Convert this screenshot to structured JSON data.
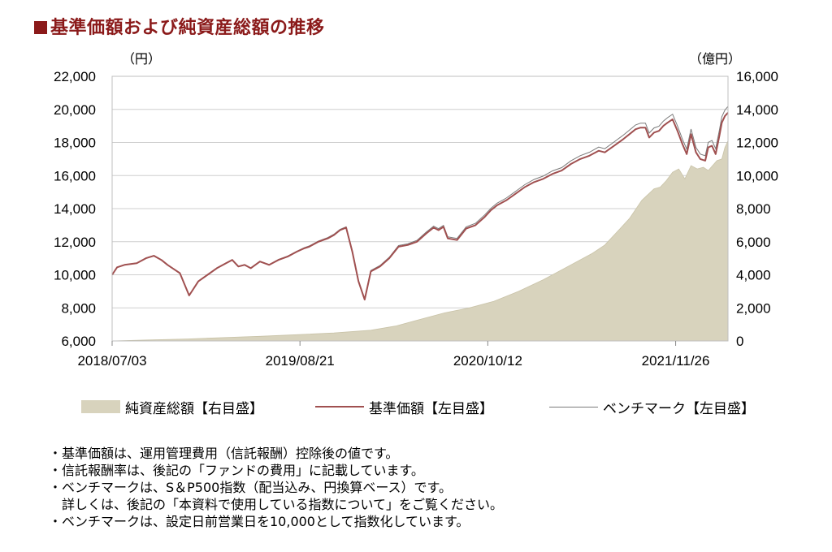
{
  "title": "基準価額および純資産総額の推移",
  "left_unit": "（円）",
  "right_unit": "（億円）",
  "colors": {
    "title": "#8b1a1a",
    "nav_line": "#a05050",
    "benchmark_line": "#7a7a7a",
    "assets_fill": "#d8d3bd",
    "grid": "#cfcfcf"
  },
  "legend": {
    "assets": "純資産総額【右目盛】",
    "nav": "基準価額【左目盛】",
    "benchmark": "ベンチマーク【左目盛】"
  },
  "notes": [
    "・基準価額は、運用管理費用（信託報酬）控除後の値です。",
    "・信託報酬率は、後記の「ファンドの費用」に記載しています。",
    "・ベンチマークは、S＆P500指数（配当込み、円換算ベース）です。",
    "　詳しくは、後記の「本資料で使用している指数について」をご覧ください。",
    "・ベンチマークは、設定日前営業日を10,000として指数化しています。"
  ],
  "chart_data": {
    "type": "line",
    "x_ticks": [
      "2018/07/03",
      "2019/08/21",
      "2020/10/12",
      "2021/11/26"
    ],
    "left_axis": {
      "min": 6000,
      "max": 22000,
      "ticks": [
        "6,000",
        "8,000",
        "10,000",
        "12,000",
        "14,000",
        "16,000",
        "18,000",
        "20,000",
        "22,000"
      ]
    },
    "right_axis": {
      "min": 0,
      "max": 16000,
      "ticks": [
        "0",
        "2,000",
        "4,000",
        "6,000",
        "8,000",
        "10,000",
        "12,000",
        "14,000",
        "16,000"
      ]
    },
    "grid": true,
    "x_range": [
      0,
      1000
    ],
    "series": [
      {
        "name": "基準価額【左目盛】",
        "axis": "left",
        "x": [
          0,
          8,
          20,
          40,
          55,
          68,
          80,
          90,
          98,
          110,
          125,
          140,
          155,
          170,
          185,
          195,
          205,
          215,
          225,
          240,
          255,
          270,
          285,
          300,
          312,
          320,
          335,
          350,
          360,
          370,
          380,
          390,
          400,
          410,
          420,
          435,
          450,
          465,
          480,
          495,
          510,
          522,
          530,
          538,
          545,
          560,
          575,
          590,
          605,
          615,
          625,
          640,
          655,
          670,
          685,
          700,
          715,
          730,
          745,
          760,
          775,
          790,
          800,
          815,
          830,
          840,
          850,
          858,
          866,
          872,
          880,
          888,
          895,
          902,
          910,
          918,
          926,
          933,
          940,
          948,
          955,
          963,
          968,
          974,
          980,
          986,
          990,
          995,
          1000
        ],
        "values": [
          10000,
          10450,
          10600,
          10700,
          11000,
          11150,
          10900,
          10600,
          10400,
          10100,
          8750,
          9600,
          10000,
          10400,
          10700,
          10900,
          10500,
          10600,
          10400,
          10800,
          10600,
          10900,
          11100,
          11400,
          11600,
          11700,
          12000,
          12200,
          12400,
          12700,
          12850,
          11400,
          9600,
          8500,
          10200,
          10500,
          11000,
          11700,
          11800,
          12000,
          12500,
          12850,
          12700,
          12900,
          12200,
          12100,
          12800,
          13000,
          13500,
          13900,
          14200,
          14500,
          14900,
          15300,
          15600,
          15800,
          16100,
          16300,
          16700,
          17000,
          17200,
          17500,
          17400,
          17800,
          18200,
          18500,
          18800,
          18900,
          18900,
          18300,
          18600,
          18700,
          19000,
          19200,
          19400,
          18700,
          17900,
          17300,
          18500,
          17400,
          17000,
          16900,
          17700,
          17800,
          17300,
          18400,
          19200,
          19600,
          19800
        ]
      },
      {
        "name": "ベンチマーク【左目盛】",
        "axis": "left",
        "x": [
          0,
          8,
          20,
          40,
          55,
          68,
          80,
          90,
          98,
          110,
          125,
          140,
          155,
          170,
          185,
          195,
          205,
          215,
          225,
          240,
          255,
          270,
          285,
          300,
          312,
          320,
          335,
          350,
          360,
          370,
          380,
          390,
          400,
          410,
          420,
          435,
          450,
          465,
          480,
          495,
          510,
          522,
          530,
          538,
          545,
          560,
          575,
          590,
          605,
          615,
          625,
          640,
          655,
          670,
          685,
          700,
          715,
          730,
          745,
          760,
          775,
          790,
          800,
          815,
          830,
          840,
          850,
          858,
          866,
          872,
          880,
          888,
          895,
          902,
          910,
          918,
          926,
          933,
          940,
          948,
          955,
          963,
          968,
          974,
          980,
          986,
          990,
          995,
          1000
        ],
        "values": [
          10000,
          10460,
          10610,
          10710,
          11020,
          11170,
          10910,
          10610,
          10410,
          10110,
          8760,
          9610,
          10020,
          10420,
          10720,
          10920,
          10520,
          10620,
          10420,
          10820,
          10620,
          10930,
          11130,
          11430,
          11640,
          11740,
          12040,
          12250,
          12450,
          12750,
          12900,
          11450,
          9650,
          8550,
          10260,
          10560,
          11060,
          11770,
          11870,
          12080,
          12580,
          12940,
          12790,
          12990,
          12290,
          12200,
          12900,
          13110,
          13620,
          14020,
          14330,
          14640,
          15040,
          15450,
          15760,
          15970,
          16280,
          16480,
          16890,
          17200,
          17410,
          17720,
          17620,
          18030,
          18440,
          18750,
          19060,
          19170,
          19170,
          18570,
          18880,
          18980,
          19290,
          19500,
          19710,
          19000,
          18200,
          17600,
          18810,
          17700,
          17300,
          17200,
          18010,
          18120,
          17620,
          18740,
          19550,
          19960,
          20180
        ]
      },
      {
        "name": "純資産総額【右目盛】",
        "axis": "right",
        "type": "area",
        "x": [
          0,
          60,
          120,
          180,
          240,
          300,
          360,
          420,
          460,
          500,
          540,
          580,
          620,
          660,
          700,
          740,
          780,
          800,
          820,
          840,
          860,
          880,
          890,
          900,
          910,
          920,
          930,
          940,
          950,
          960,
          968,
          975,
          982,
          990,
          995,
          1000
        ],
        "values": [
          0,
          60,
          120,
          200,
          280,
          380,
          480,
          650,
          900,
          1300,
          1700,
          2000,
          2400,
          3000,
          3700,
          4500,
          5300,
          5800,
          6600,
          7400,
          8500,
          9200,
          9300,
          9700,
          10200,
          10400,
          9800,
          10600,
          10400,
          10500,
          10300,
          10600,
          10900,
          11000,
          11700,
          12100
        ]
      }
    ]
  }
}
